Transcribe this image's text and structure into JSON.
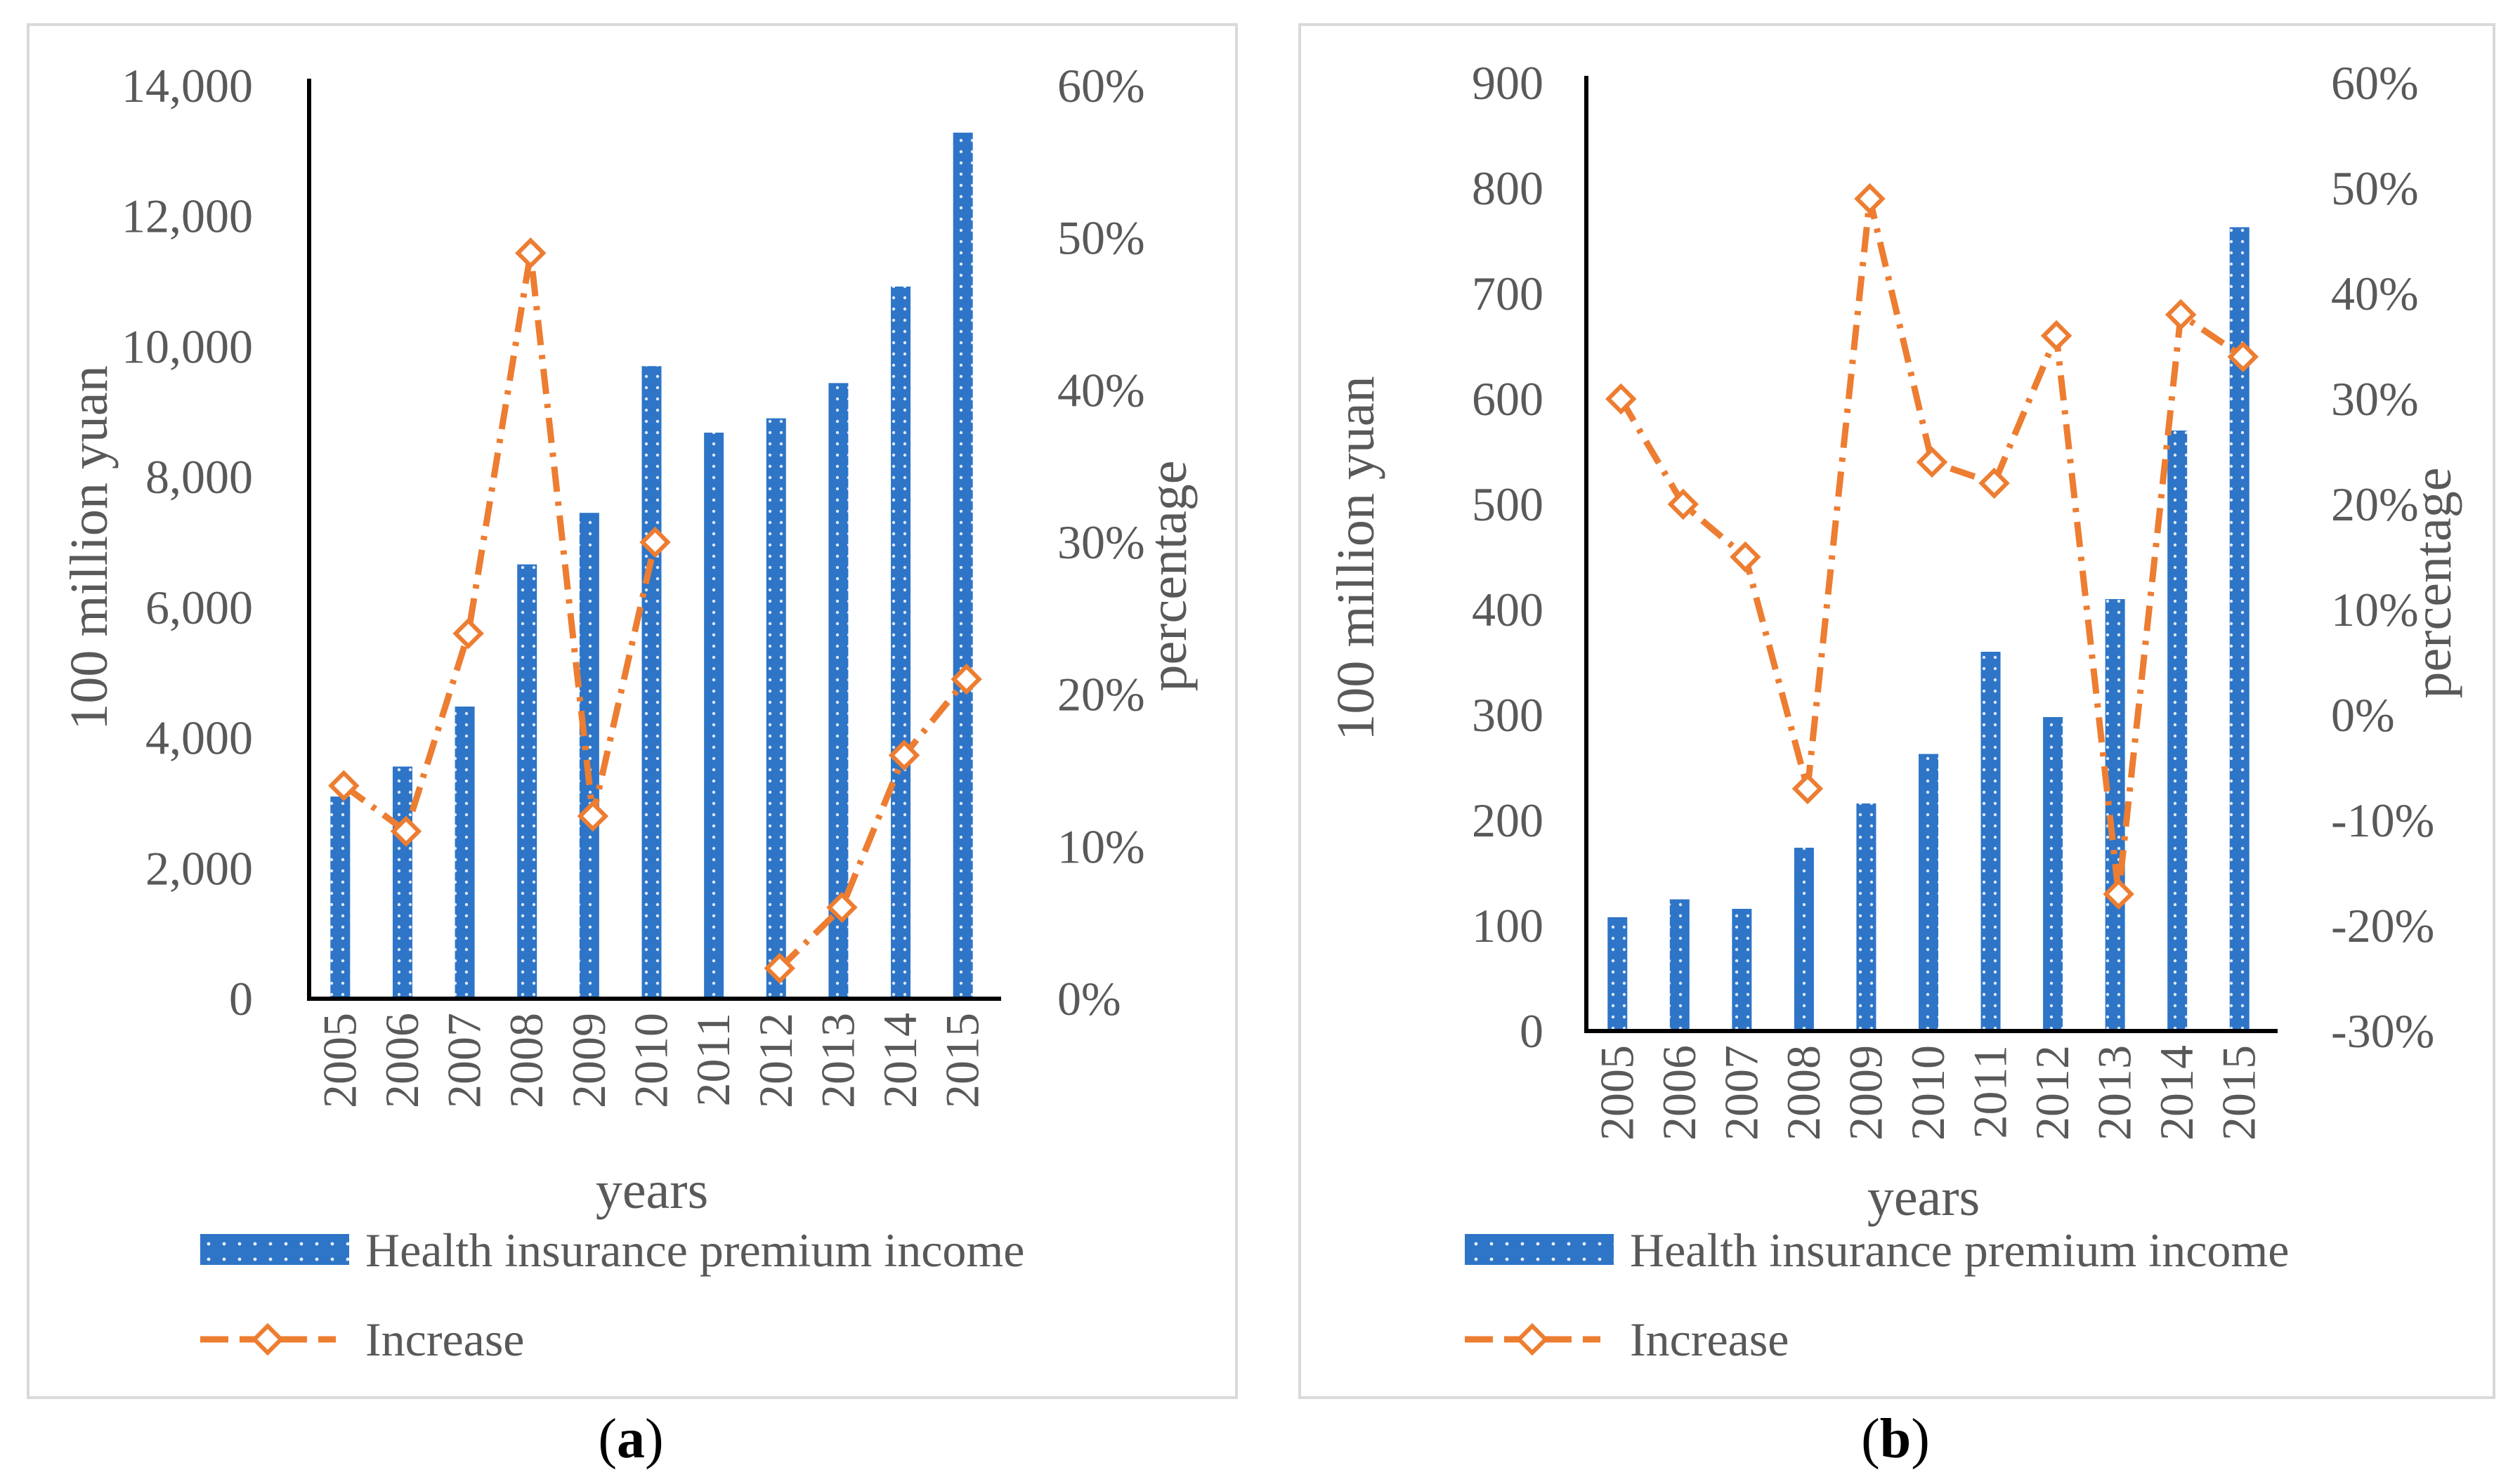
{
  "colors": {
    "bar": "#2E75C7",
    "line": "#ED7D31",
    "axis": "#000000",
    "text": "#595959",
    "frame": "#D9D9D9"
  },
  "chart_data": [
    {
      "type": "bar",
      "panel_label": "a",
      "categories": [
        "2005",
        "2006",
        "2007",
        "2008",
        "2009",
        "2010",
        "2011",
        "2012",
        "2013",
        "2014",
        "2015"
      ],
      "series": [
        {
          "name": "Health insurance premium income",
          "axis": "left",
          "values": [
            3100,
            3560,
            4480,
            6660,
            7450,
            9700,
            8680,
            8900,
            9440,
            10920,
            13280
          ]
        },
        {
          "name": "Increase",
          "axis": "right",
          "kind": "line",
          "values": [
            0.14,
            0.11,
            0.24,
            0.49,
            0.12,
            0.3,
            null,
            0.02,
            0.06,
            0.16,
            0.21
          ]
        }
      ],
      "ylim": [
        0,
        14000
      ],
      "y_ticks": [
        "0",
        "2,000",
        "4,000",
        "6,000",
        "8,000",
        "10,000",
        "12,000",
        "14,000"
      ],
      "y2lim": [
        0,
        0.6
      ],
      "y2_ticks": [
        "0%",
        "10%",
        "20%",
        "30%",
        "40%",
        "50%",
        "60%"
      ],
      "xlabel": "years",
      "ylabel": "100 million yuan",
      "y2label": "percentage",
      "legend": [
        "Health insurance premium income",
        "Increase"
      ],
      "legend_placement": "bottom"
    },
    {
      "type": "bar",
      "panel_label": "b",
      "categories": [
        "2005",
        "2006",
        "2007",
        "2008",
        "2009",
        "2010",
        "2011",
        "2012",
        "2013",
        "2014",
        "2015"
      ],
      "series": [
        {
          "name": "Health insurance premium income",
          "axis": "left",
          "values": [
            108,
            125,
            116,
            174,
            216,
            263,
            360,
            298,
            410,
            570,
            763
          ]
        },
        {
          "name": "Increase",
          "axis": "right",
          "kind": "line",
          "values": [
            0.3,
            0.2,
            0.15,
            -0.07,
            0.49,
            0.24,
            0.22,
            0.36,
            -0.17,
            0.38,
            0.34
          ]
        }
      ],
      "ylim": [
        0,
        900
      ],
      "y_ticks": [
        "0",
        "100",
        "200",
        "300",
        "400",
        "500",
        "600",
        "700",
        "800",
        "900"
      ],
      "y2lim": [
        -0.3,
        0.6
      ],
      "y2_ticks": [
        "-30%",
        "-20%",
        "-10%",
        "0%",
        "10%",
        "20%",
        "30%",
        "40%",
        "50%",
        "60%"
      ],
      "xlabel": "years",
      "ylabel": "100 million yuan",
      "y2label": "percentage",
      "legend": [
        "Health insurance premium income",
        "Increase"
      ],
      "legend_placement": "bottom"
    }
  ]
}
